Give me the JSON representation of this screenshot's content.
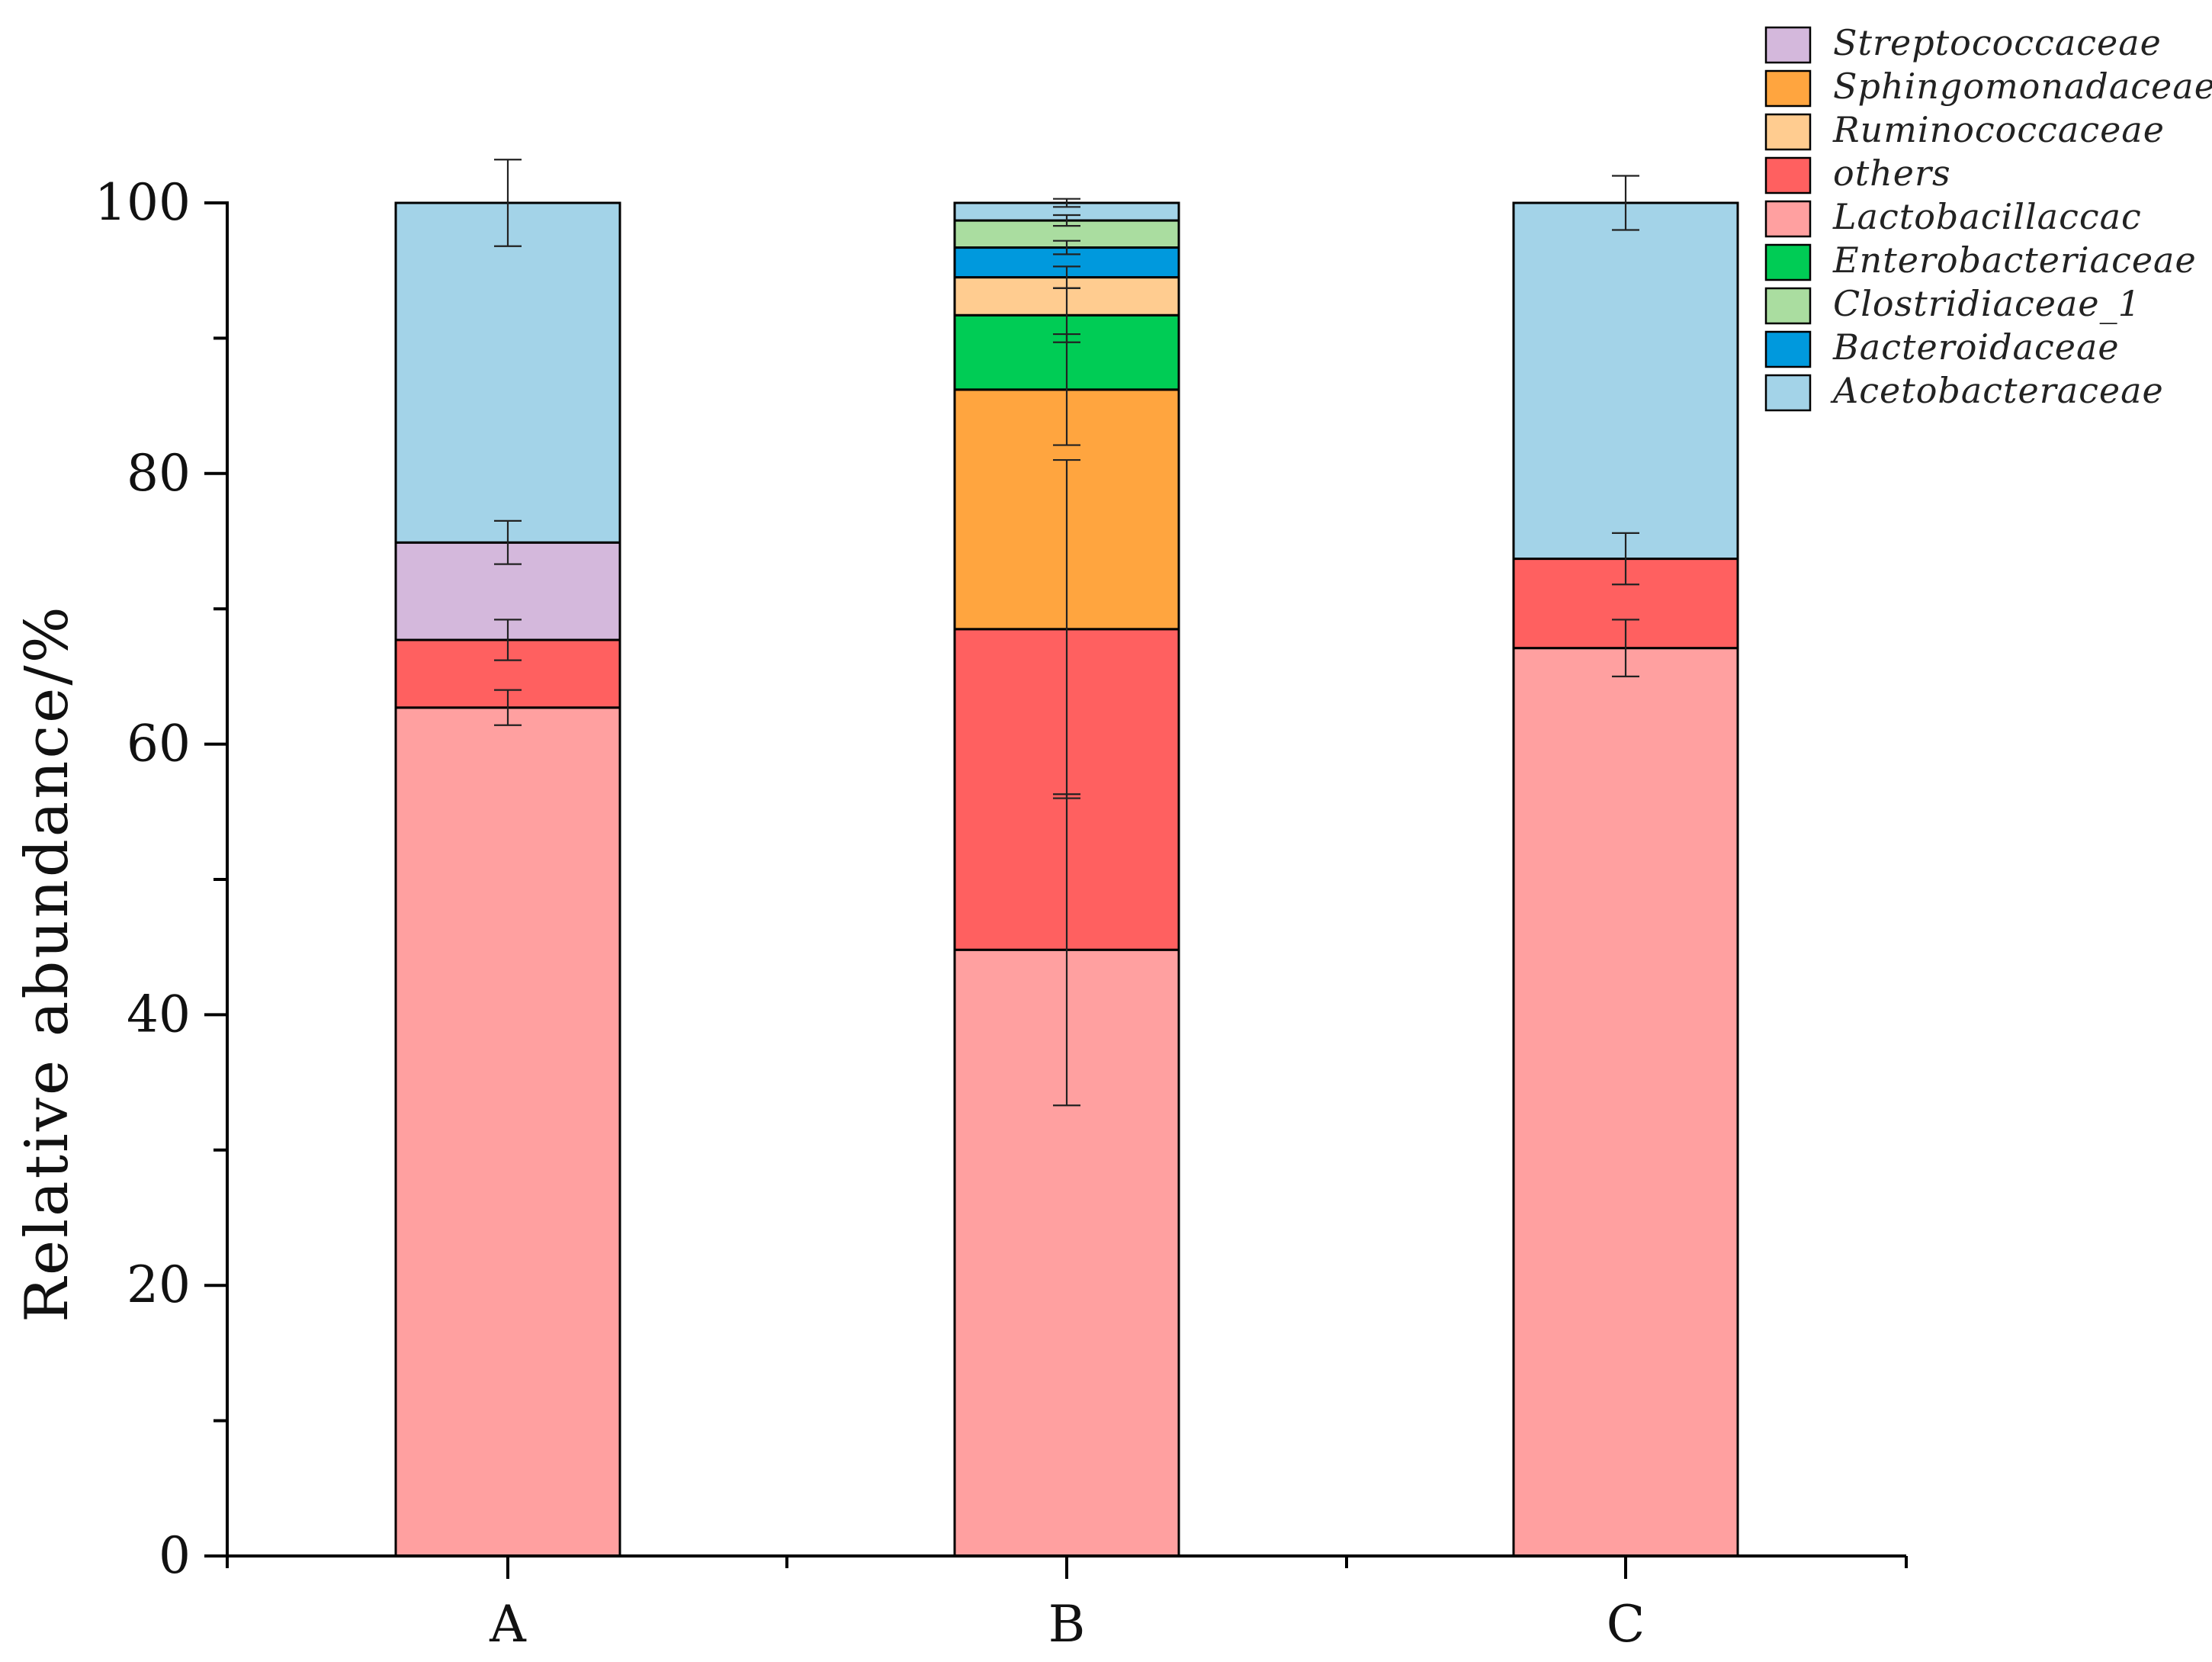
{
  "chart_data": {
    "type": "bar",
    "stacked": true,
    "title": "",
    "xlabel": "",
    "ylabel": "Relative abundance/%",
    "ylim": [
      0,
      100
    ],
    "yticks": [
      0,
      20,
      40,
      60,
      80,
      100
    ],
    "categories": [
      "A",
      "B",
      "C"
    ],
    "legend_position": "top-right",
    "series": [
      {
        "name": "Lactobacillaccac",
        "color": "#FFA0A0",
        "values": [
          62.7,
          44.8,
          67.1
        ],
        "errors": [
          1.3,
          11.5,
          2.1
        ]
      },
      {
        "name": "others",
        "color": "#FF6060",
        "values": [
          5.0,
          23.7,
          6.6
        ],
        "errors": [
          1.5,
          12.5,
          1.9
        ]
      },
      {
        "name": "Sphingomonadaceae",
        "color": "#FFA53F",
        "values": [
          0,
          17.7,
          0
        ],
        "errors": [
          0,
          4.1,
          0
        ]
      },
      {
        "name": "Enterobacteriaceae",
        "color": "#00CC55",
        "values": [
          0,
          5.5,
          0
        ],
        "errors": [
          0,
          2.0,
          0
        ]
      },
      {
        "name": "Ruminococcaceae",
        "color": "#FFCC90",
        "values": [
          0,
          2.8,
          0
        ],
        "errors": [
          0,
          0.8,
          0
        ]
      },
      {
        "name": "Bacteroidaceae",
        "color": "#0099DD",
        "values": [
          0,
          2.2,
          0
        ],
        "errors": [
          0,
          0.5,
          0
        ]
      },
      {
        "name": "Clostridiaceae_1",
        "color": "#AADDA0",
        "values": [
          0,
          2.0,
          0
        ],
        "errors": [
          0,
          0.4,
          0
        ]
      },
      {
        "name": "Streptococcaceae",
        "color": "#D4B8DC",
        "values": [
          7.2,
          0,
          0
        ],
        "errors": [
          1.6,
          0,
          0
        ]
      },
      {
        "name": "Acetobacteraceae",
        "color": "#A3D3E8",
        "values": [
          25.1,
          1.3,
          26.3
        ],
        "errors": [
          3.2,
          0.3,
          2.0
        ]
      }
    ],
    "legend_order": [
      "Streptococcaceae",
      "Sphingomonadaceae",
      "Ruminococcaceae",
      "others",
      "Lactobacillaccac",
      "Enterobacteriaceae",
      "Clostridiaceae_1",
      "Bacteroidaceae",
      "Acetobacteraceae"
    ],
    "legend_labels": [
      "Streptococcaceae",
      "Sphingomonadaceae",
      "Ruminococcaceae",
      "others",
      "Lactobacillaccac",
      "Enterobacteriaceae",
      "Clostridiaceae_1",
      "Bacteroidaceae",
      "Acetobacteraceae"
    ]
  }
}
